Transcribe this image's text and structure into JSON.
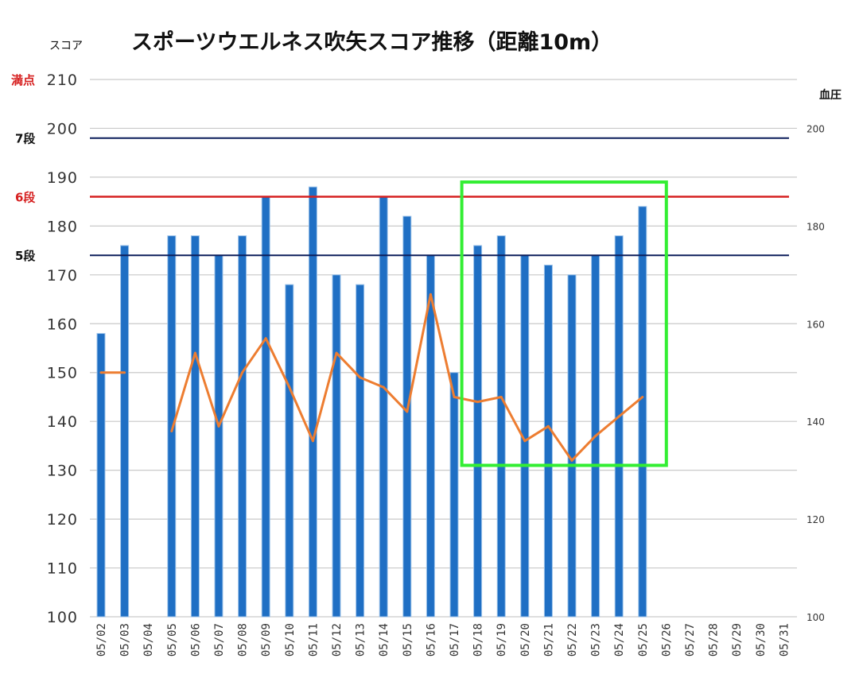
{
  "chart_data": {
    "type": "bar",
    "title": "スポーツウエルネス吹矢スコア推移（距離10m）",
    "ylabel": "スコア",
    "y2label": "血圧",
    "ylim": [
      100,
      210
    ],
    "y2lim": [
      100,
      210
    ],
    "yticks": [
      "100",
      "110",
      "120",
      "130",
      "140",
      "150",
      "160",
      "170",
      "180",
      "190",
      "200",
      "210"
    ],
    "y2ticks": [
      "100",
      "120",
      "140",
      "160",
      "180",
      "200"
    ],
    "categories": [
      "05/02",
      "05/03",
      "05/04",
      "05/05",
      "05/06",
      "05/07",
      "05/08",
      "05/09",
      "05/10",
      "05/11",
      "05/12",
      "05/13",
      "05/14",
      "05/15",
      "05/16",
      "05/17",
      "05/18",
      "05/19",
      "05/20",
      "05/21",
      "05/22",
      "05/23",
      "05/24",
      "05/25",
      "05/26",
      "05/27",
      "05/28",
      "05/29",
      "05/30",
      "05/31"
    ],
    "series": [
      {
        "name": "",
        "kind": "bar",
        "axis": "left",
        "color": "#1f6fc4",
        "values": [
          158,
          176,
          null,
          178,
          178,
          174,
          178,
          186,
          168,
          188,
          170,
          168,
          186,
          182,
          174,
          150,
          176,
          178,
          174,
          172,
          170,
          174,
          178,
          184,
          null,
          null,
          null,
          null,
          null,
          null
        ]
      },
      {
        "name": "",
        "kind": "line",
        "axis": "right",
        "color": "#ed7d31",
        "values": [
          150,
          150,
          null,
          138,
          154,
          139,
          150,
          157,
          147,
          136,
          154,
          149,
          147,
          142,
          166,
          145,
          144,
          145,
          136,
          139,
          132,
          137,
          141,
          145,
          null,
          null,
          null,
          null,
          null,
          null
        ]
      }
    ],
    "reference_lines": [
      {
        "label": "満点",
        "value": 210,
        "color": "#d62020",
        "drawn": false
      },
      {
        "label": "7段",
        "value": 198,
        "color": "#0d1f5c",
        "drawn": true
      },
      {
        "label": "6段",
        "value": 186,
        "color": "#d62020",
        "drawn": true
      },
      {
        "label": "5段",
        "value": 174,
        "color": "#0d1f5c",
        "drawn": true
      }
    ],
    "highlight": {
      "from": "05/18",
      "to": "05/25",
      "ylim": [
        131,
        189
      ],
      "color": "#33ee33"
    },
    "grid": true
  }
}
